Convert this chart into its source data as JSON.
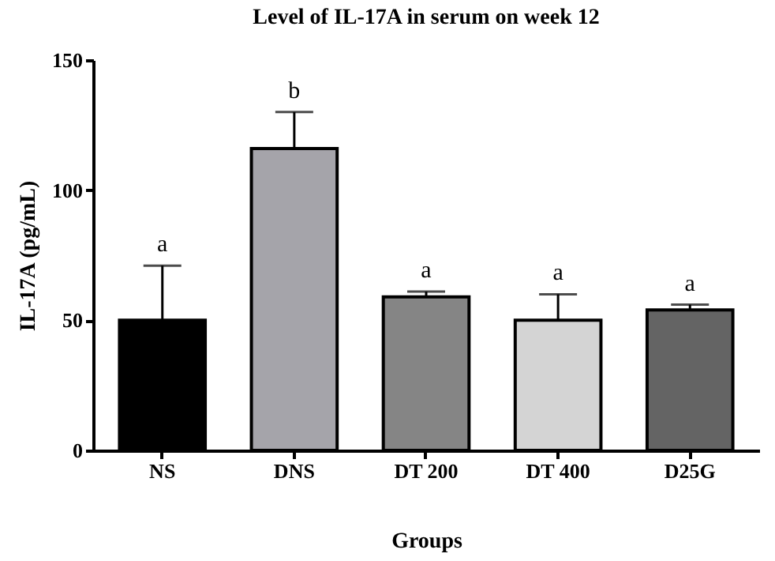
{
  "chart_data": {
    "type": "bar",
    "title": "Level of IL-17A in serum on week 12",
    "xlabel": "Groups",
    "ylabel": "IL-17A (pg/mL)",
    "categories": [
      "NS",
      "DNS",
      "DT 200",
      "DT 400",
      "D25G"
    ],
    "values": [
      50,
      116,
      59,
      50,
      54
    ],
    "colors": [
      "#000000",
      "#a5a4aa",
      "#858585",
      "#d4d4d4",
      "#646464"
    ],
    "errors": [
      [
        50,
        71
      ],
      [
        116,
        130
      ],
      [
        59,
        61
      ],
      [
        50,
        60
      ],
      [
        54,
        56
      ]
    ],
    "ylim": [
      0,
      150
    ],
    "yticks": [
      0,
      50,
      100,
      150
    ],
    "grid": false,
    "annotations": [
      {
        "text": "a",
        "x": "NS",
        "y": 71
      },
      {
        "text": "b",
        "x": "DNS",
        "y": 130
      },
      {
        "text": "a",
        "x": "DT 200",
        "y": 61
      },
      {
        "text": "a",
        "x": "DT 400",
        "y": 60
      },
      {
        "text": "a",
        "x": "D25G",
        "y": 56
      }
    ]
  }
}
